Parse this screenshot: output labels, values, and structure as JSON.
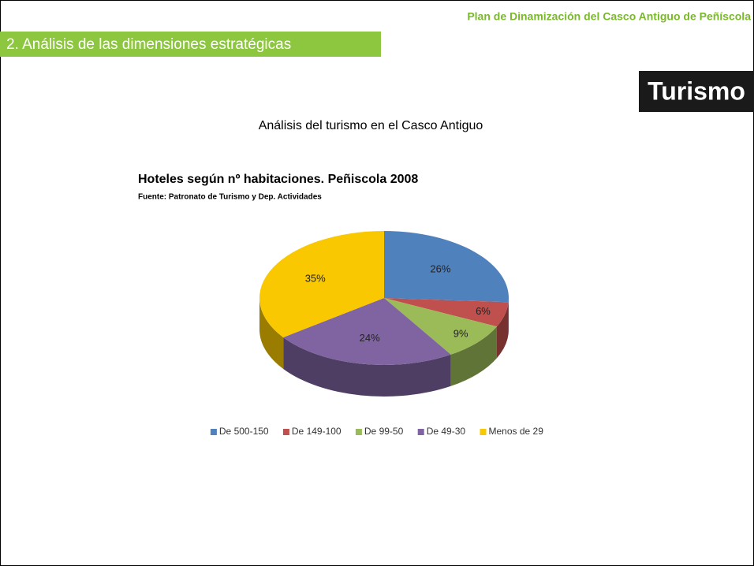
{
  "header": {
    "section": "2. Análisis de las dimensiones estratégicas",
    "doc_title": "Plan de Dinamización del Casco Antiguo de Peñíscola",
    "tag": "Turismo"
  },
  "heading": "Análisis del turismo en el Casco Antiguo",
  "chart_data": {
    "type": "pie",
    "title": "Hoteles según nº habitaciones. Peñiscola 2008",
    "subtitle": "Fuente: Patronato de Turismo y Dep. Actividades",
    "categories": [
      "De 500-150",
      "De 149-100",
      "De 99-50",
      "De 49-30",
      "Menos de 29"
    ],
    "values": [
      26,
      6,
      9,
      24,
      35
    ],
    "value_labels": [
      "26%",
      "6%",
      "9%",
      "24%",
      "35%"
    ],
    "colors": [
      "#4f81bd",
      "#c0504d",
      "#9bbb59",
      "#8064a2",
      "#f9c800"
    ],
    "legend": "bottom"
  }
}
